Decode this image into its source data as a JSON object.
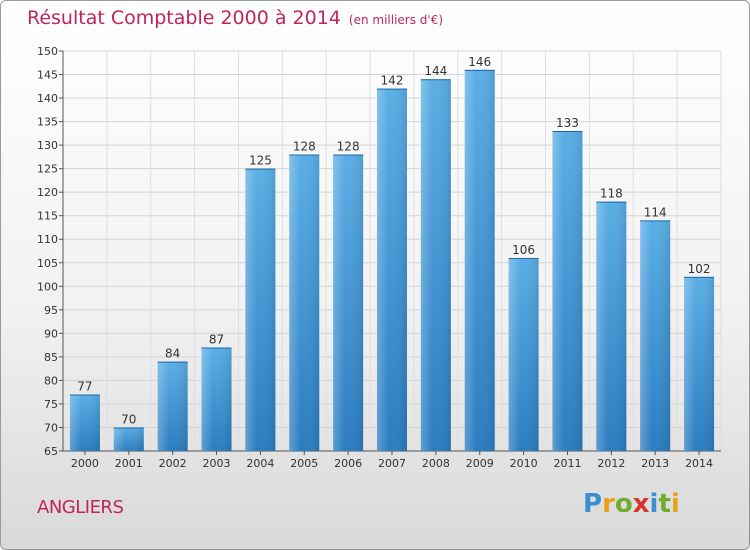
{
  "chart_data": {
    "type": "bar",
    "title": "Résultat Comptable 2000 à 2014",
    "subtitle": "(en milliers d'€)",
    "categories": [
      "2000",
      "2001",
      "2002",
      "2003",
      "2004",
      "2005",
      "2006",
      "2007",
      "2008",
      "2009",
      "2010",
      "2011",
      "2012",
      "2013",
      "2014"
    ],
    "values": [
      77,
      70,
      84,
      87,
      125,
      128,
      128,
      142,
      144,
      146,
      106,
      133,
      118,
      114,
      102
    ],
    "ylim": [
      65,
      150
    ],
    "yticks": [
      65,
      70,
      75,
      80,
      85,
      90,
      95,
      100,
      105,
      110,
      115,
      120,
      125,
      130,
      135,
      140,
      145,
      150
    ],
    "xlabel": "",
    "ylabel": "",
    "grid": true,
    "bar_color": "#3d95d6"
  },
  "place_name": "ANGLIERS",
  "brand": {
    "letters": [
      "P",
      "r",
      "o",
      "x",
      "i",
      "t",
      "i"
    ],
    "colors": [
      "#3a8fd4",
      "#e8a21a",
      "#6fae2d",
      "#d8322e",
      "#3a8fd4",
      "#6fae2d",
      "#e8a21a"
    ]
  }
}
